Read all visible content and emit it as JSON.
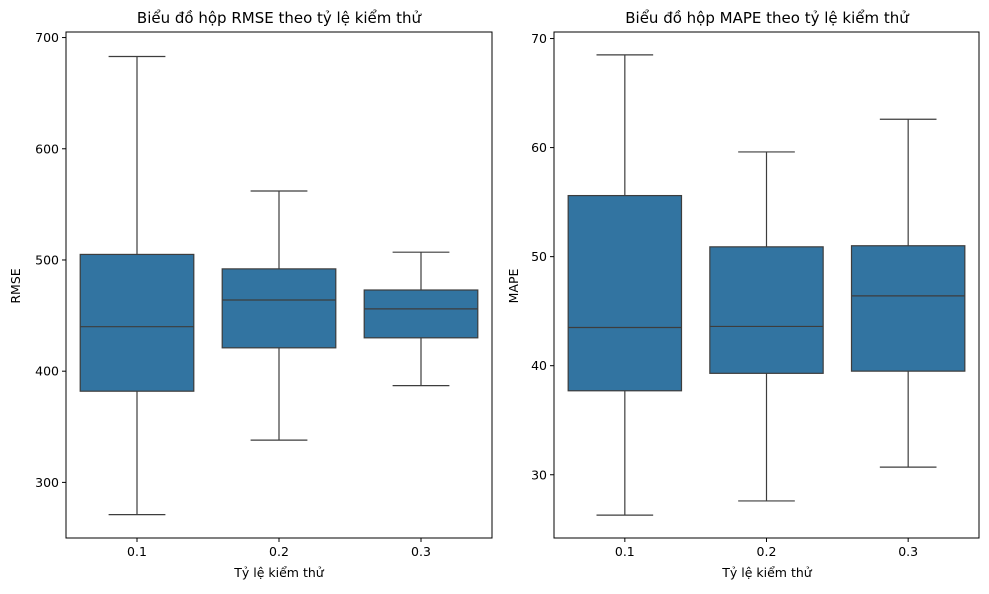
{
  "chart_data": [
    {
      "type": "box",
      "title": "Biểu đồ hộp RMSE theo tỷ lệ kiểm thử",
      "xlabel": "Tỷ lệ kiểm thử",
      "ylabel": "RMSE",
      "categories": [
        "0.1",
        "0.2",
        "0.3"
      ],
      "ylim": [
        250,
        705
      ],
      "yticks": [
        300,
        400,
        500,
        600,
        700
      ],
      "boxes": [
        {
          "category": "0.1",
          "min": 271,
          "q1": 382,
          "median": 440,
          "q3": 505,
          "max": 683
        },
        {
          "category": "0.2",
          "min": 338,
          "q1": 421,
          "median": 464,
          "q3": 492,
          "max": 562
        },
        {
          "category": "0.3",
          "min": 387,
          "q1": 430,
          "median": 456,
          "q3": 473,
          "max": 507
        }
      ],
      "box_color": "#3274a1",
      "line_color": "#3d3d3d",
      "grid": false
    },
    {
      "type": "box",
      "title": "Biểu đồ hộp MAPE theo tỷ lệ kiểm thử",
      "xlabel": "Tỷ lệ kiểm thử",
      "ylabel": "MAPE",
      "categories": [
        "0.1",
        "0.2",
        "0.3"
      ],
      "ylim": [
        24.2,
        70.6
      ],
      "yticks": [
        30,
        40,
        50,
        60,
        70
      ],
      "boxes": [
        {
          "category": "0.1",
          "min": 26.3,
          "q1": 37.7,
          "median": 43.5,
          "q3": 55.6,
          "max": 68.5
        },
        {
          "category": "0.2",
          "min": 27.6,
          "q1": 39.3,
          "median": 43.6,
          "q3": 50.9,
          "max": 59.6
        },
        {
          "category": "0.3",
          "min": 30.7,
          "q1": 39.5,
          "median": 46.4,
          "q3": 51.0,
          "max": 62.6
        }
      ],
      "box_color": "#3274a1",
      "line_color": "#3d3d3d",
      "grid": false
    }
  ]
}
